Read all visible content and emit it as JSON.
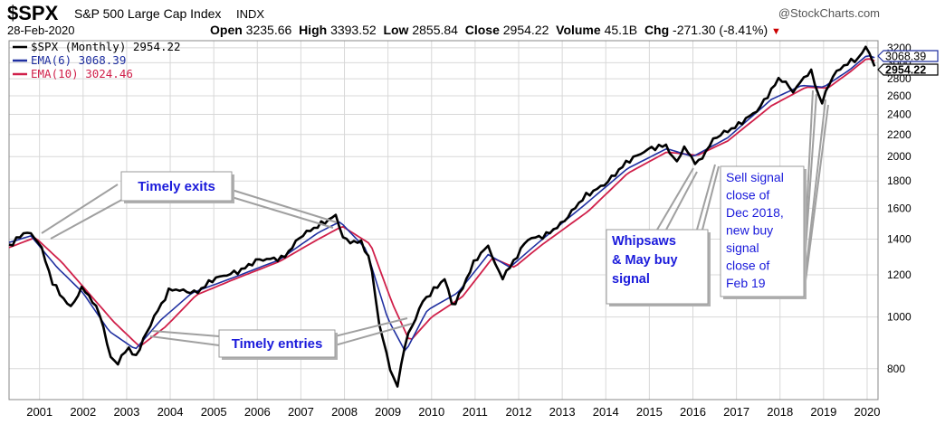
{
  "header": {
    "symbol": "$SPX",
    "name": "S&P 500 Large Cap Index",
    "type": "INDX",
    "date": "28-Feb-2020",
    "brand": "@StockCharts.com",
    "open_label": "Open",
    "open": "3235.66",
    "high_label": "High",
    "high": "3393.52",
    "low_label": "Low",
    "low": "2855.84",
    "close_label": "Close",
    "close": "2954.22",
    "volume_label": "Volume",
    "volume": "45.1B",
    "chg_label": "Chg",
    "chg": "-271.30 (-8.41%)"
  },
  "colors": {
    "price": "#000000",
    "ema6": "#1f2fa0",
    "ema10": "#d0204a",
    "grid": "#d8d8d8",
    "annotation_text": "#1a1adb",
    "pointer": "#a0a0a0"
  },
  "legend": [
    {
      "label": "$SPX (Monthly) 2954.22",
      "color": "#000000"
    },
    {
      "label": "EMA(6) 3068.39",
      "color": "#1f2fa0"
    },
    {
      "label": "EMA(10) 3024.46",
      "color": "#d0204a"
    }
  ],
  "price_tags": [
    {
      "text": "3068.39",
      "color": "#1f2fa0",
      "value": 3068.39
    },
    {
      "text": "2954.22",
      "color": "#000000",
      "value": 2954.22
    }
  ],
  "annotations": [
    {
      "id": "exits",
      "lines": [
        "Timely exits"
      ]
    },
    {
      "id": "entries",
      "lines": [
        "Timely entries"
      ]
    },
    {
      "id": "whipsaws",
      "lines": [
        "Whipsaws",
        "& May buy",
        "signal"
      ]
    },
    {
      "id": "sell",
      "lines": [
        "Sell signal",
        "close of",
        "Dec 2018,",
        "new buy",
        "signal",
        "close of",
        "Feb 19"
      ]
    }
  ],
  "chart_data": {
    "type": "line",
    "title": "",
    "xlabel": "",
    "ylabel": "",
    "yscale": "log",
    "ylim": [
      700,
      3300
    ],
    "xlim": [
      2000.3,
      2020.25
    ],
    "grid": true,
    "legend_position": "top-left",
    "x_ticks": [
      "2001",
      "2002",
      "2003",
      "2004",
      "2005",
      "2006",
      "2007",
      "2008",
      "2009",
      "2010",
      "2011",
      "2012",
      "2013",
      "2014",
      "2015",
      "2016",
      "2017",
      "2018",
      "2019",
      "2020"
    ],
    "y_ticks": [
      800,
      1000,
      1200,
      1400,
      1600,
      1800,
      2000,
      2200,
      2400,
      2600,
      2800,
      3000,
      3200
    ],
    "price_anchors": [
      [
        2000.3,
        1360
      ],
      [
        2000.7,
        1450
      ],
      [
        2001.0,
        1380
      ],
      [
        2001.3,
        1160
      ],
      [
        2001.7,
        1040
      ],
      [
        2002.0,
        1140
      ],
      [
        2002.4,
        1010
      ],
      [
        2002.6,
        850
      ],
      [
        2002.8,
        815
      ],
      [
        2003.0,
        880
      ],
      [
        2003.2,
        840
      ],
      [
        2003.6,
        990
      ],
      [
        2004.0,
        1130
      ],
      [
        2004.6,
        1110
      ],
      [
        2005.0,
        1180
      ],
      [
        2005.6,
        1220
      ],
      [
        2006.0,
        1280
      ],
      [
        2006.6,
        1290
      ],
      [
        2007.0,
        1420
      ],
      [
        2007.5,
        1500
      ],
      [
        2007.8,
        1550
      ],
      [
        2008.0,
        1390
      ],
      [
        2008.4,
        1380
      ],
      [
        2008.6,
        1270
      ],
      [
        2008.8,
        970
      ],
      [
        2009.0,
        830
      ],
      [
        2009.2,
        730
      ],
      [
        2009.4,
        900
      ],
      [
        2009.8,
        1070
      ],
      [
        2010.3,
        1180
      ],
      [
        2010.5,
        1040
      ],
      [
        2011.0,
        1280
      ],
      [
        2011.3,
        1360
      ],
      [
        2011.6,
        1180
      ],
      [
        2011.8,
        1240
      ],
      [
        2012.2,
        1400
      ],
      [
        2012.6,
        1420
      ],
      [
        2013.0,
        1500
      ],
      [
        2013.5,
        1680
      ],
      [
        2014.0,
        1780
      ],
      [
        2014.5,
        1960
      ],
      [
        2015.0,
        2070
      ],
      [
        2015.4,
        2100
      ],
      [
        2015.6,
        1940
      ],
      [
        2015.8,
        2080
      ],
      [
        2016.1,
        1930
      ],
      [
        2016.5,
        2170
      ],
      [
        2017.0,
        2280
      ],
      [
        2017.5,
        2450
      ],
      [
        2018.0,
        2820
      ],
      [
        2018.3,
        2650
      ],
      [
        2018.7,
        2910
      ],
      [
        2018.95,
        2510
      ],
      [
        2019.2,
        2830
      ],
      [
        2019.5,
        2980
      ],
      [
        2019.8,
        3060
      ],
      [
        2020.0,
        3230
      ],
      [
        2020.17,
        2954
      ]
    ],
    "ema6_anchors": [
      [
        2000.3,
        1380
      ],
      [
        2000.8,
        1420
      ],
      [
        2001.4,
        1240
      ],
      [
        2002.0,
        1110
      ],
      [
        2002.6,
        940
      ],
      [
        2003.2,
        870
      ],
      [
        2003.8,
        990
      ],
      [
        2004.5,
        1110
      ],
      [
        2005.5,
        1190
      ],
      [
        2006.5,
        1280
      ],
      [
        2007.4,
        1440
      ],
      [
        2007.9,
        1510
      ],
      [
        2008.5,
        1340
      ],
      [
        2009.0,
        990
      ],
      [
        2009.4,
        860
      ],
      [
        2009.9,
        1030
      ],
      [
        2010.6,
        1110
      ],
      [
        2011.3,
        1310
      ],
      [
        2011.8,
        1240
      ],
      [
        2012.5,
        1390
      ],
      [
        2013.5,
        1620
      ],
      [
        2014.5,
        1900
      ],
      [
        2015.4,
        2070
      ],
      [
        2016.0,
        2000
      ],
      [
        2016.8,
        2170
      ],
      [
        2017.8,
        2560
      ],
      [
        2018.5,
        2720
      ],
      [
        2019.0,
        2700
      ],
      [
        2019.6,
        2910
      ],
      [
        2020.0,
        3100
      ],
      [
        2020.17,
        3068
      ]
    ],
    "ema10_anchors": [
      [
        2000.3,
        1350
      ],
      [
        2000.9,
        1410
      ],
      [
        2001.5,
        1270
      ],
      [
        2002.0,
        1140
      ],
      [
        2002.7,
        980
      ],
      [
        2003.3,
        880
      ],
      [
        2003.9,
        960
      ],
      [
        2004.6,
        1100
      ],
      [
        2005.5,
        1180
      ],
      [
        2006.5,
        1270
      ],
      [
        2007.4,
        1400
      ],
      [
        2007.95,
        1480
      ],
      [
        2008.6,
        1370
      ],
      [
        2009.1,
        1060
      ],
      [
        2009.5,
        900
      ],
      [
        2010.0,
        1000
      ],
      [
        2010.7,
        1090
      ],
      [
        2011.4,
        1290
      ],
      [
        2011.9,
        1240
      ],
      [
        2012.5,
        1360
      ],
      [
        2013.6,
        1580
      ],
      [
        2014.5,
        1860
      ],
      [
        2015.4,
        2040
      ],
      [
        2016.1,
        2010
      ],
      [
        2016.8,
        2140
      ],
      [
        2017.8,
        2490
      ],
      [
        2018.6,
        2700
      ],
      [
        2019.1,
        2690
      ],
      [
        2019.6,
        2880
      ],
      [
        2020.0,
        3060
      ],
      [
        2020.17,
        3024
      ]
    ]
  }
}
